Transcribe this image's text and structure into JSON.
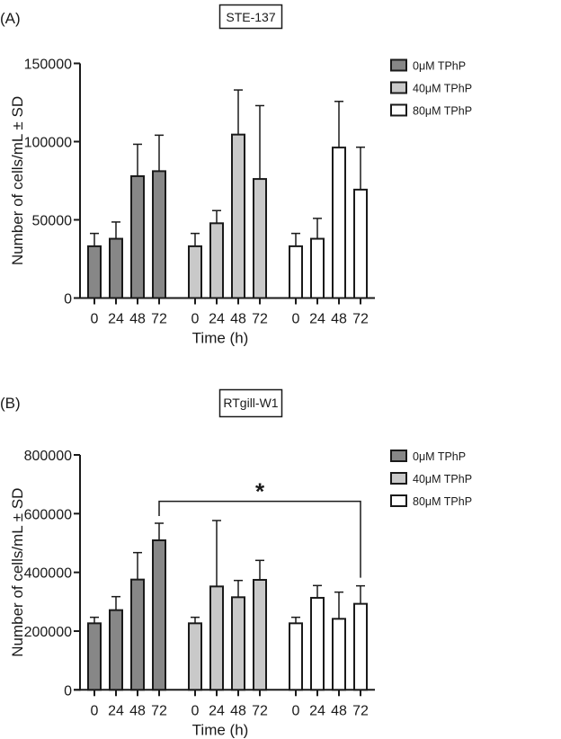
{
  "chart_data": [
    {
      "type": "bar",
      "panel_label": "(A)",
      "title": "STE-137",
      "xlabel": "Time (h)",
      "ylabel": "Number of cells/mL ± SD",
      "ylim": [
        0,
        150000
      ],
      "yticks": [
        "0",
        "50000",
        "100000",
        "150000"
      ],
      "categories": [
        "0",
        "24",
        "48",
        "72"
      ],
      "legend_position": "top-right",
      "grid": false,
      "series": [
        {
          "name": "0μM TPhP",
          "color": "#878787",
          "values": [
            33100,
            37900,
            77900,
            81100
          ],
          "error_upper": [
            41300,
            48600,
            98300,
            104100
          ]
        },
        {
          "name": "40μM TPhP",
          "color": "#c9c9c9",
          "values": [
            33100,
            47800,
            104500,
            76100
          ],
          "error_upper": [
            41300,
            55900,
            133000,
            123000
          ]
        },
        {
          "name": "80μM TPhP",
          "color": "#ffffff",
          "values": [
            33100,
            37900,
            96200,
            69300
          ],
          "error_upper": [
            41300,
            50900,
            125700,
            96400
          ]
        }
      ]
    },
    {
      "type": "bar",
      "panel_label": "(B)",
      "title": "RTgill-W1",
      "xlabel": "Time (h)",
      "ylabel": "Number of cells/mL  ± SD",
      "ylim": [
        0,
        800000
      ],
      "yticks": [
        "0",
        "200000",
        "400000",
        "600000",
        "800000"
      ],
      "categories": [
        "0",
        "24",
        "48",
        "72"
      ],
      "legend_position": "top-right",
      "grid": false,
      "series": [
        {
          "name": "0μM TPhP",
          "color": "#878787",
          "values": [
            226500,
            271400,
            375500,
            509200
          ],
          "error_upper": [
            247000,
            317300,
            467300,
            567300
          ]
        },
        {
          "name": "40μM TPhP",
          "color": "#c9c9c9",
          "values": [
            226500,
            352000,
            315300,
            374500
          ],
          "error_upper": [
            247000,
            576500,
            372400,
            440800
          ]
        },
        {
          "name": "80μM TPhP",
          "color": "#ffffff",
          "values": [
            226500,
            313300,
            241800,
            292900
          ],
          "error_upper": [
            247000,
            355100,
            332700,
            354100
          ]
        }
      ],
      "annotations": [
        {
          "text": "*",
          "type": "significance-bracket",
          "from": {
            "series": "0μM TPhP",
            "category": "72"
          },
          "to": {
            "series": "80μM TPhP",
            "category": "72"
          },
          "level": 642000
        }
      ]
    }
  ]
}
